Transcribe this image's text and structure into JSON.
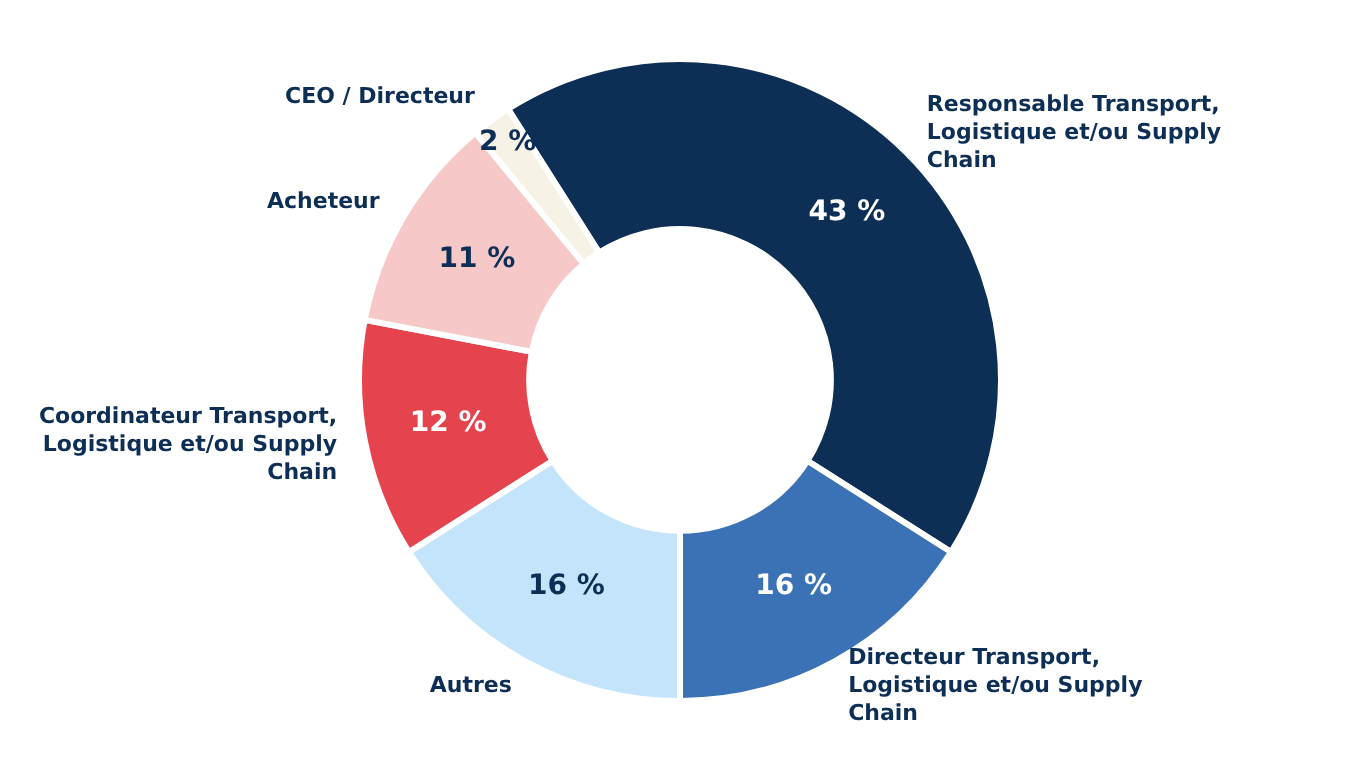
{
  "chart_data": {
    "type": "donut",
    "categories": [
      "Responsable Transport, Logistique et/ou Supply Chain",
      "Directeur Transport, Logistique et/ou Supply Chain",
      "Autres",
      "Coordinateur Transport, Logistique et/ou Supply Chain",
      "Acheteur",
      "CEO / Directeur"
    ],
    "values": [
      43,
      16,
      16,
      12,
      11,
      2
    ],
    "colors": [
      "#0d2e55",
      "#3a72b5",
      "#c3e4fa",
      "#e5434d",
      "#f6c9c8",
      "#f6f3e6"
    ],
    "value_labels": [
      "43 %",
      "16 %",
      "16 %",
      "12 %",
      "11 %",
      "2 %"
    ],
    "legend": false
  }
}
